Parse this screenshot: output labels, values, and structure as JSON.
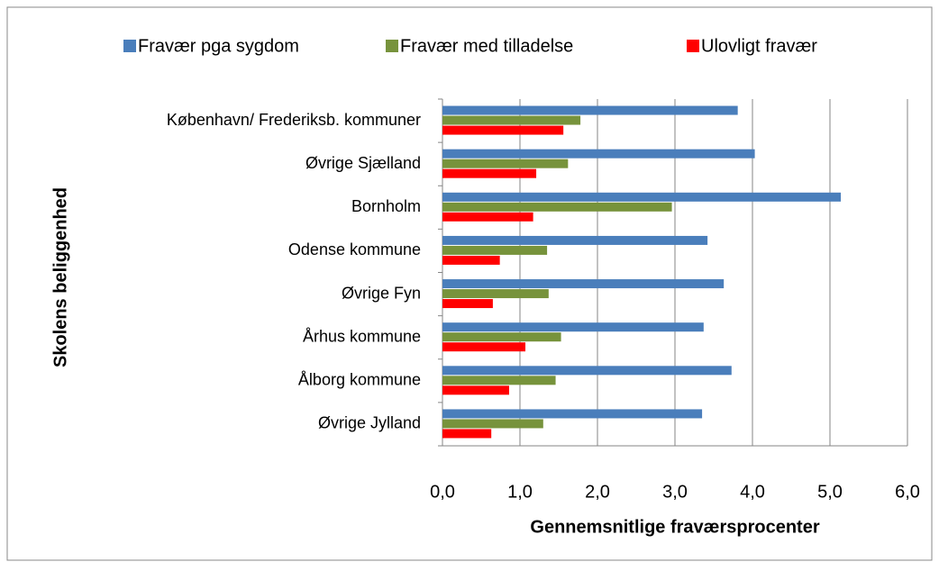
{
  "chart_data": {
    "type": "hbar",
    "ylabel": "Skolens beliggenhed",
    "xlabel": "Gennemsnitlige fraværsprocenter",
    "categories": [
      "København/ Frederiksb. kommuner",
      "Øvrige Sjælland",
      "Bornholm",
      "Odense kommune",
      "Øvrige Fyn",
      "Århus kommune",
      "Ålborg kommune",
      "Øvrige Jylland"
    ],
    "series": [
      {
        "name": "Fravær pga sygdom",
        "color": "#4a7ebb",
        "values": [
          3.81,
          4.03,
          5.14,
          3.42,
          3.63,
          3.37,
          3.73,
          3.35
        ]
      },
      {
        "name": "Fravær med tilladelse",
        "color": "#77933c",
        "values": [
          1.78,
          1.62,
          2.96,
          1.35,
          1.37,
          1.53,
          1.46,
          1.3
        ]
      },
      {
        "name": "Ulovligt fravær",
        "color": "#ff0000",
        "values": [
          1.56,
          1.21,
          1.17,
          0.74,
          0.65,
          1.07,
          0.86,
          0.63
        ]
      }
    ],
    "xlim": [
      0,
      6
    ],
    "xticks": [
      {
        "value": 0,
        "label": "0,0"
      },
      {
        "value": 1,
        "label": "1,0"
      },
      {
        "value": 2,
        "label": "2,0"
      },
      {
        "value": 3,
        "label": "3,0"
      },
      {
        "value": 4,
        "label": "4,0"
      },
      {
        "value": 5,
        "label": "5,0"
      },
      {
        "value": 6,
        "label": "6,0"
      }
    ],
    "grid": true,
    "legend": "top"
  }
}
